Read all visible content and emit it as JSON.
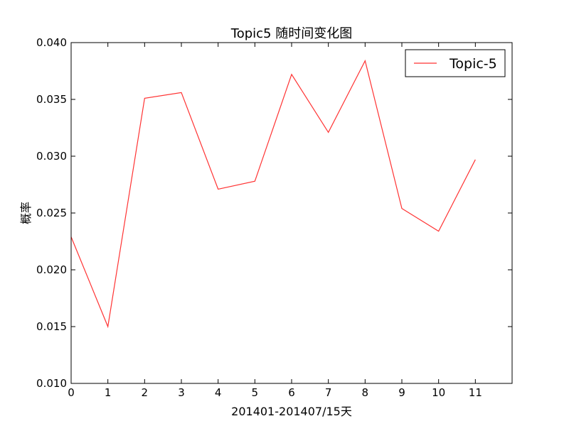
{
  "chart_data": {
    "type": "line",
    "title": "Topic5 随时间变化图",
    "xlabel": "201401-201407/15天",
    "ylabel": "概率",
    "x": [
      0,
      1,
      2,
      3,
      4,
      5,
      6,
      7,
      8,
      9,
      10,
      11
    ],
    "xlim": [
      0,
      12
    ],
    "ylim": [
      0.01,
      0.04
    ],
    "xticks": [
      "0",
      "1",
      "2",
      "3",
      "4",
      "5",
      "6",
      "7",
      "8",
      "9",
      "10",
      "11"
    ],
    "yticks": [
      "0.010",
      "0.015",
      "0.020",
      "0.025",
      "0.030",
      "0.035",
      "0.040"
    ],
    "grid": false,
    "legend_position": "top-right",
    "series": [
      {
        "name": "Topic-5",
        "color": "#ff3333",
        "values": [
          0.0229,
          0.015,
          0.0351,
          0.0356,
          0.0271,
          0.0278,
          0.0372,
          0.0321,
          0.0384,
          0.0254,
          0.0234,
          0.0297
        ]
      }
    ]
  }
}
